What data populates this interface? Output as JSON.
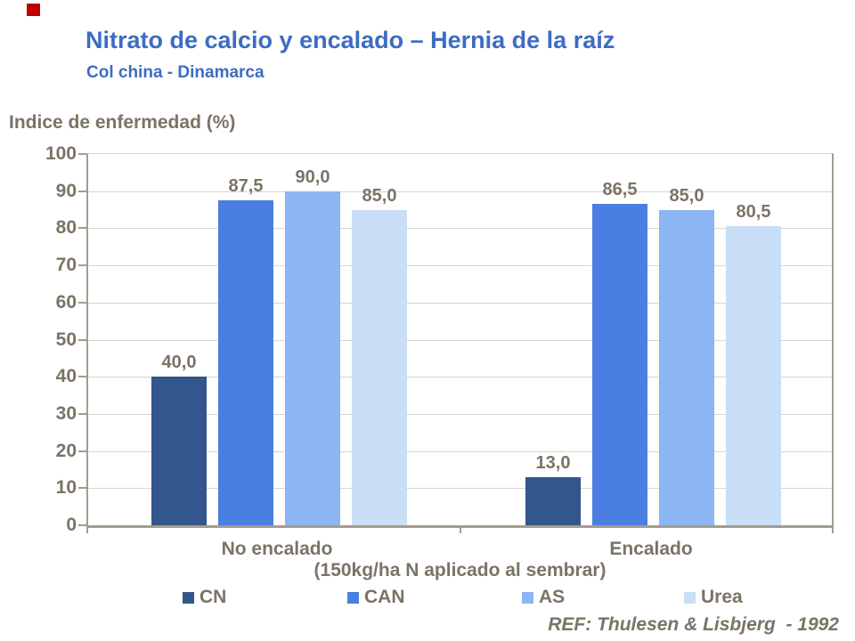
{
  "slide": {
    "title": "Nitrato de calcio y encalado – Hernia de la raíz",
    "subtitle": "Col china - Dinamarca",
    "footer": "REF: Thulesen & Lisbjerg  - 1992"
  },
  "colors": {
    "title_blue": "#3D6CC2",
    "chart_text": "#7B7365",
    "axis_line": "#A49C8F",
    "gridline": "#D9D5CD",
    "accent_red": "#C00000"
  },
  "chart_data": {
    "type": "bar",
    "title": "Indice de enfermedad (%)",
    "ylabel": "Indice de enfermedad (%)",
    "xlabel": "",
    "categories": [
      "No encalado",
      "Encalado"
    ],
    "category_note": "(150kg/ha N aplicado al sembrar)",
    "series": [
      {
        "name": "CN",
        "color": "#33568C",
        "values": [
          40.0,
          13.0
        ],
        "labels": [
          "40,0",
          "13,0"
        ]
      },
      {
        "name": "CAN",
        "color": "#4A7EE0",
        "values": [
          87.5,
          86.5
        ],
        "labels": [
          "87,5",
          "86,5"
        ]
      },
      {
        "name": "AS",
        "color": "#8CB5F4",
        "values": [
          90.0,
          85.0
        ],
        "labels": [
          "90,0",
          "85,0"
        ]
      },
      {
        "name": "Urea",
        "color": "#C9DEF7",
        "values": [
          85.0,
          80.5
        ],
        "labels": [
          "85,0",
          "80,5"
        ]
      }
    ],
    "ylim": [
      0,
      100
    ],
    "ytick_step": 10,
    "yticks": [
      "0",
      "10",
      "20",
      "30",
      "40",
      "50",
      "60",
      "70",
      "80",
      "90",
      "100"
    ],
    "grid": true,
    "legend_position": "bottom"
  }
}
